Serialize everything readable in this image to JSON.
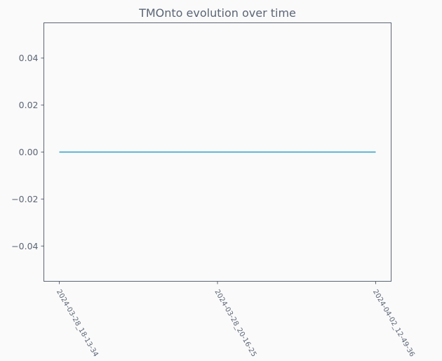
{
  "chart_data": {
    "type": "line",
    "title": "TMOnto evolution over time",
    "xlabel": "",
    "ylabel": "",
    "categories": [
      "2024-03-28_18-13-34",
      "2024-03-28_20-16-25",
      "2024-04-02_12-49-36"
    ],
    "series": [
      {
        "name": "TMOnto",
        "values": [
          0,
          0,
          0
        ],
        "color": "#2a9fc9"
      }
    ],
    "ylim": [
      -0.055,
      0.055
    ],
    "yticks": [
      0.04,
      0.02,
      0.0,
      -0.02,
      -0.04
    ],
    "ytick_labels": [
      "0.04",
      "0.02",
      "0.00",
      "−0.02",
      "−0.04"
    ],
    "grid": false,
    "colors": {
      "background": "#fafafa",
      "axes": "#5b6576",
      "text": "#5b6576"
    }
  }
}
